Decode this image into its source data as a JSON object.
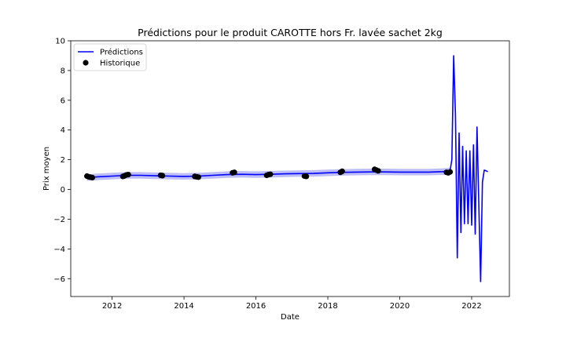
{
  "chart_data": {
    "type": "line",
    "title": "Prédictions pour le produit CAROTTE hors Fr. lavée sachet 2kg",
    "xlabel": "Date",
    "ylabel": "Prix moyen",
    "xlim": [
      2010.85,
      2023.05
    ],
    "ylim": [
      -7.2,
      10
    ],
    "xticks": [
      2012,
      2014,
      2016,
      2018,
      2020,
      2022
    ],
    "yticks": [
      -6,
      -4,
      -2,
      0,
      2,
      4,
      6,
      8,
      10
    ],
    "grid": false,
    "legend": {
      "position": "top-left",
      "entries": [
        "Prédictions",
        "Historique"
      ]
    },
    "colors": {
      "prediction": "#0000ff",
      "band": "#b3b3f5",
      "history": "#000000"
    },
    "series": [
      {
        "name": "Prédictions",
        "kind": "line",
        "x": [
          2011.3,
          2011.6,
          2012.0,
          2012.4,
          2012.8,
          2013.2,
          2013.6,
          2014.0,
          2014.4,
          2014.8,
          2015.2,
          2015.6,
          2016.0,
          2016.4,
          2016.8,
          2017.2,
          2017.6,
          2018.0,
          2018.4,
          2018.8,
          2019.2,
          2019.6,
          2020.0,
          2020.4,
          2020.8,
          2021.2,
          2021.4,
          2021.45,
          2021.5,
          2021.55,
          2021.6,
          2021.65,
          2021.7,
          2021.75,
          2021.8,
          2021.85,
          2021.9,
          2021.95,
          2022.0,
          2022.05,
          2022.1,
          2022.15,
          2022.2,
          2022.25,
          2022.3,
          2022.35,
          2022.4,
          2022.45
        ],
        "y": [
          0.8,
          0.85,
          0.9,
          0.95,
          0.95,
          0.92,
          0.9,
          0.88,
          0.9,
          0.95,
          1.0,
          1.02,
          1.0,
          1.02,
          1.05,
          1.07,
          1.08,
          1.12,
          1.15,
          1.17,
          1.18,
          1.18,
          1.17,
          1.17,
          1.17,
          1.2,
          1.25,
          2.0,
          9.0,
          5.0,
          -4.6,
          3.8,
          -2.9,
          2.9,
          -2.3,
          2.6,
          -2.3,
          2.6,
          -2.4,
          3.0,
          -3.0,
          4.2,
          -1.0,
          -6.2,
          0.5,
          1.3,
          1.25,
          1.2
        ]
      },
      {
        "name": "Historique",
        "kind": "scatter",
        "x": [
          2011.3,
          2011.35,
          2011.4,
          2011.45,
          2012.3,
          2012.35,
          2012.4,
          2012.45,
          2013.35,
          2013.4,
          2014.3,
          2014.35,
          2014.4,
          2015.35,
          2015.4,
          2016.3,
          2016.35,
          2016.4,
          2017.35,
          2017.4,
          2018.35,
          2018.4,
          2019.3,
          2019.35,
          2019.4,
          2021.3,
          2021.35,
          2021.4
        ],
        "y": [
          0.9,
          0.85,
          0.82,
          0.8,
          0.88,
          0.92,
          0.98,
          1.0,
          0.95,
          0.93,
          0.88,
          0.85,
          0.83,
          1.12,
          1.15,
          0.95,
          1.0,
          1.02,
          0.9,
          0.88,
          1.15,
          1.22,
          1.35,
          1.3,
          1.25,
          1.15,
          1.12,
          1.18
        ]
      }
    ]
  }
}
